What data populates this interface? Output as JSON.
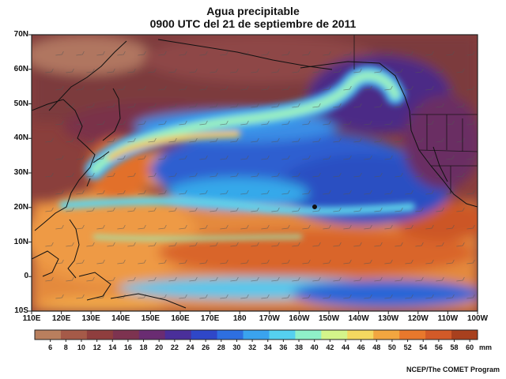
{
  "title": "Agua precipitable",
  "subtitle": "0900 UTC del 21 de septiembre de 2011",
  "latitudes": [
    "70N",
    "60N",
    "50N",
    "40N",
    "30N",
    "20N",
    "10N",
    "0",
    "10S"
  ],
  "longitudes": [
    "110E",
    "120E",
    "130E",
    "140E",
    "150E",
    "160E",
    "170E",
    "180",
    "170W",
    "160W",
    "150W",
    "140W",
    "130W",
    "120W",
    "110W",
    "100W"
  ],
  "colorbar": {
    "ticks": [
      "6",
      "8",
      "10",
      "12",
      "14",
      "16",
      "18",
      "20",
      "22",
      "24",
      "26",
      "28",
      "30",
      "32",
      "34",
      "36",
      "38",
      "40",
      "42",
      "44",
      "46",
      "48",
      "50",
      "52",
      "54",
      "56",
      "58",
      "60"
    ],
    "unit": "mm",
    "colors": [
      "#b97f5e",
      "#a55a48",
      "#8f3e3e",
      "#7d3350",
      "#6a2c72",
      "#4a2f9a",
      "#2f47c8",
      "#2e6fe0",
      "#3aa3ee",
      "#55d0ef",
      "#8ff0c8",
      "#d4f58a",
      "#f4d860",
      "#f2a640",
      "#e8782c",
      "#d25a28",
      "#a8401e"
    ]
  },
  "credit": "NCEP/The COMET Program"
}
